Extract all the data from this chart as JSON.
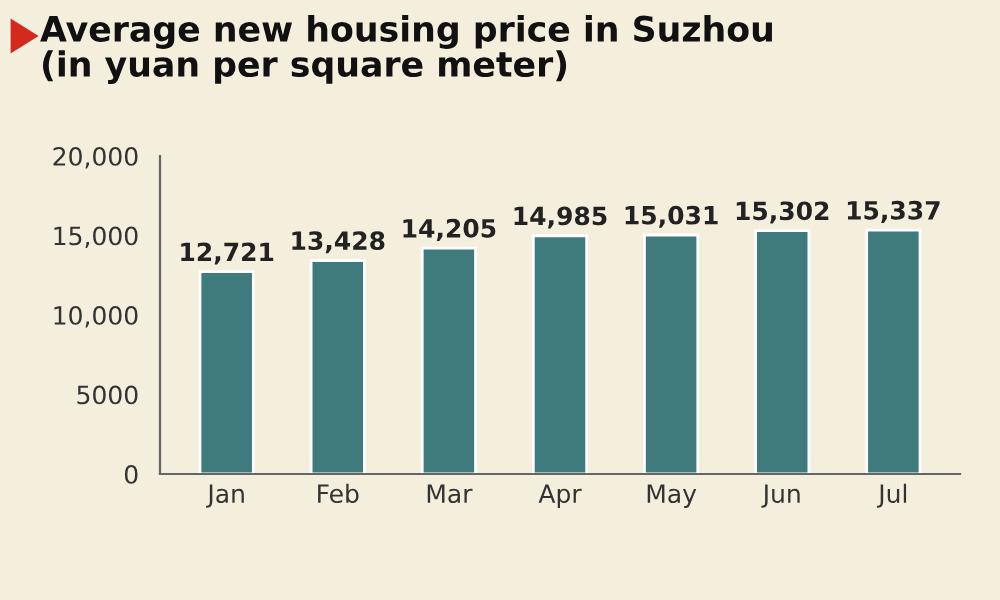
{
  "chart_data": {
    "type": "bar",
    "title": "Average new housing price in Suzhou\n(in yuan per square meter)",
    "categories": [
      "Jan",
      "Feb",
      "Mar",
      "Apr",
      "May",
      "Jun",
      "Jul"
    ],
    "values": [
      12721,
      13428,
      14205,
      14985,
      15031,
      15302,
      15337
    ],
    "color": "#3f7b7c",
    "value_labels": [
      "12,721",
      "13,428",
      "14,205",
      "14,985",
      "15,031",
      "15,302",
      "15,337"
    ],
    "ylim": [
      0,
      20000
    ],
    "yticks": [
      0,
      5000,
      {
        "value": 10000,
        "label": "10,000"
      },
      {
        "value": 15000,
        "label": "15,000"
      },
      {
        "value": 20000,
        "label": "20,000"
      }
    ],
    "grid": false,
    "legend": false
  }
}
